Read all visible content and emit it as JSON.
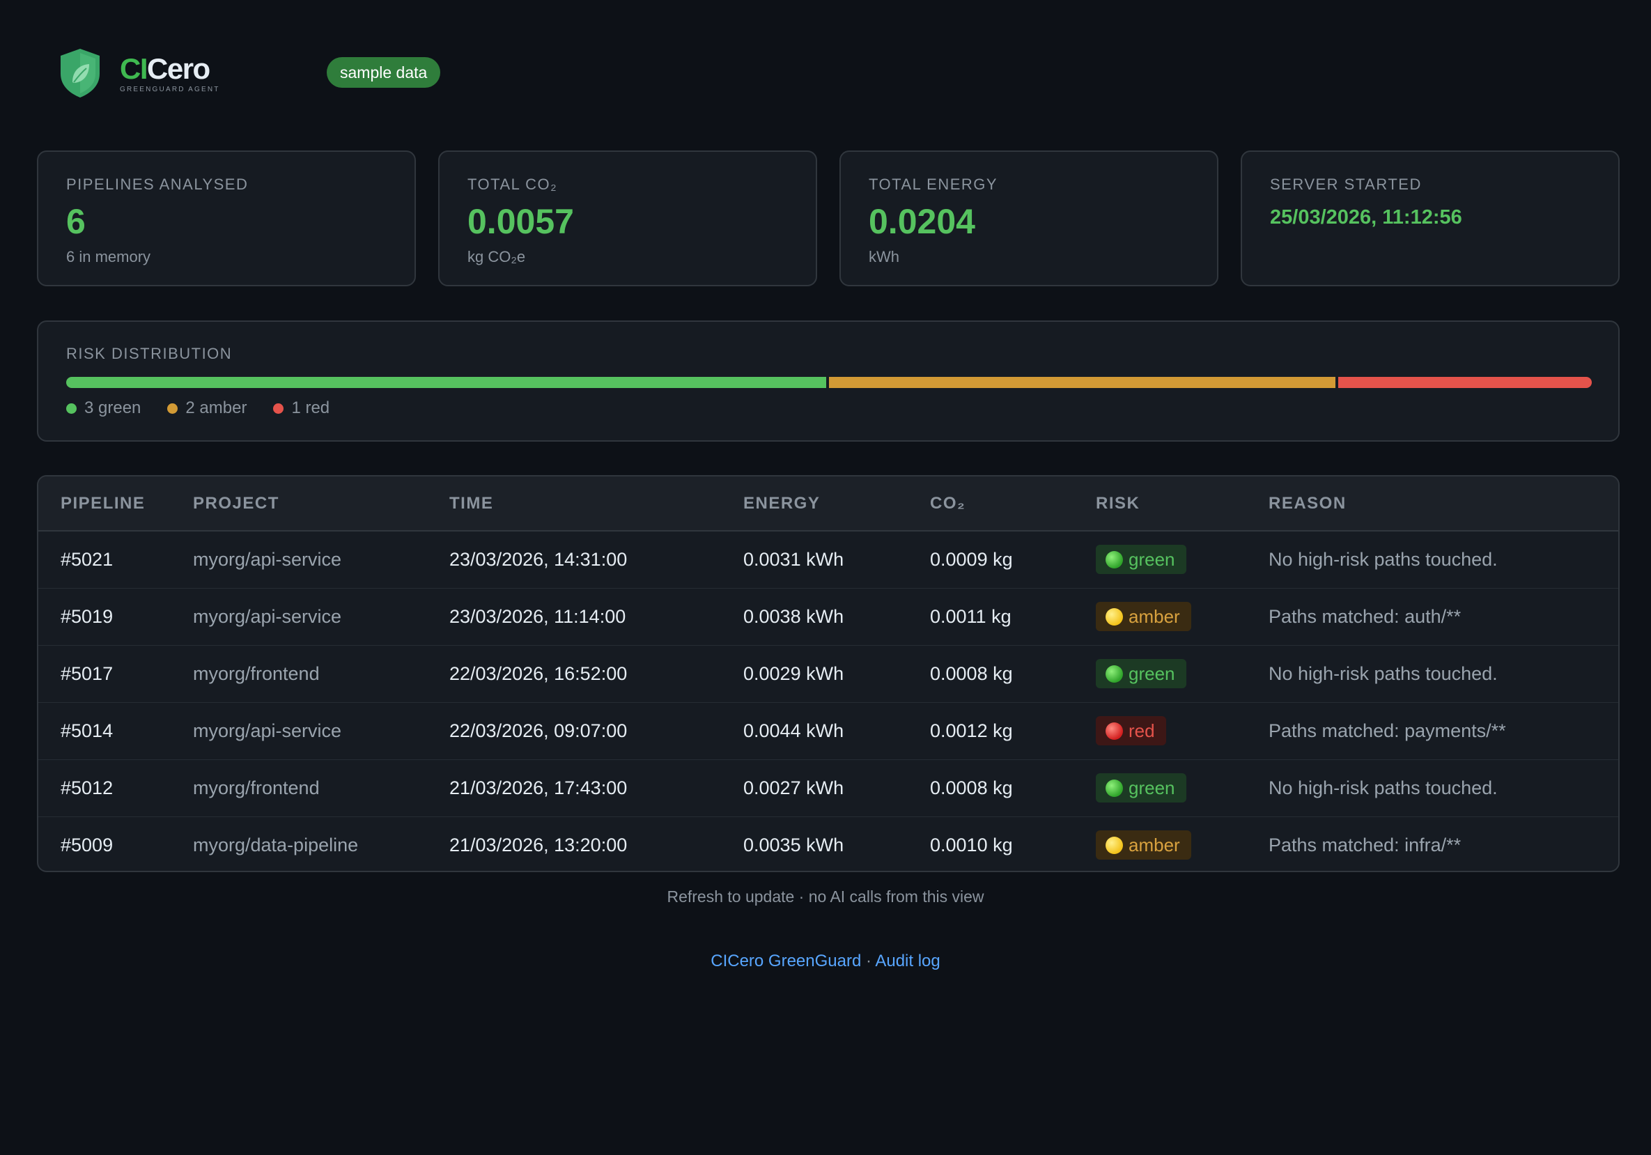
{
  "header": {
    "brand_ci": "CI",
    "brand_cero": "Cero",
    "brand_sub": "GREENGUARD AGENT",
    "badge": "sample data"
  },
  "stats": [
    {
      "label": "PIPELINES ANALYSED",
      "value": "6",
      "sub": "6 in memory"
    },
    {
      "label": "TOTAL CO₂",
      "value": "0.0057",
      "sub": "kg CO₂e"
    },
    {
      "label": "TOTAL ENERGY",
      "value": "0.0204",
      "sub": "kWh"
    },
    {
      "label": "SERVER STARTED",
      "value": "25/03/2026, 11:12:56",
      "sub": ""
    }
  ],
  "risk_distribution": {
    "title": "RISK DISTRIBUTION",
    "green_count": 3,
    "amber_count": 2,
    "red_count": 1,
    "legend": [
      "3 green",
      "2 amber",
      "1 red"
    ]
  },
  "table": {
    "columns": [
      "PIPELINE",
      "PROJECT",
      "TIME",
      "ENERGY",
      "CO₂",
      "RISK",
      "REASON"
    ],
    "rows": [
      {
        "pipeline": "#5021",
        "project": "myorg/api-service",
        "time": "23/03/2026, 14:31:00",
        "energy": "0.0031 kWh",
        "co2": "0.0009 kg",
        "risk": "green",
        "reason": "No high-risk paths touched."
      },
      {
        "pipeline": "#5019",
        "project": "myorg/api-service",
        "time": "23/03/2026, 11:14:00",
        "energy": "0.0038 kWh",
        "co2": "0.0011 kg",
        "risk": "amber",
        "reason": "Paths matched: auth/**"
      },
      {
        "pipeline": "#5017",
        "project": "myorg/frontend",
        "time": "22/03/2026, 16:52:00",
        "energy": "0.0029 kWh",
        "co2": "0.0008 kg",
        "risk": "green",
        "reason": "No high-risk paths touched."
      },
      {
        "pipeline": "#5014",
        "project": "myorg/api-service",
        "time": "22/03/2026, 09:07:00",
        "energy": "0.0044 kWh",
        "co2": "0.0012 kg",
        "risk": "red",
        "reason": "Paths matched: payments/**"
      },
      {
        "pipeline": "#5012",
        "project": "myorg/frontend",
        "time": "21/03/2026, 17:43:00",
        "energy": "0.0027 kWh",
        "co2": "0.0008 kg",
        "risk": "green",
        "reason": "No high-risk paths touched."
      },
      {
        "pipeline": "#5009",
        "project": "myorg/data-pipeline",
        "time": "21/03/2026, 13:20:00",
        "energy": "0.0035 kWh",
        "co2": "0.0010 kg",
        "risk": "amber",
        "reason": "Paths matched: infra/**"
      }
    ]
  },
  "footnote": "Refresh to update · no AI calls from this view",
  "footer": {
    "link1": "CICero GreenGuard",
    "separator": " · ",
    "link2": "Audit log"
  },
  "colors": {
    "green": "#56c25f",
    "amber": "#d29a35",
    "red": "#e5534b",
    "badge": "#2f7d3b",
    "link": "#58a6ff"
  }
}
